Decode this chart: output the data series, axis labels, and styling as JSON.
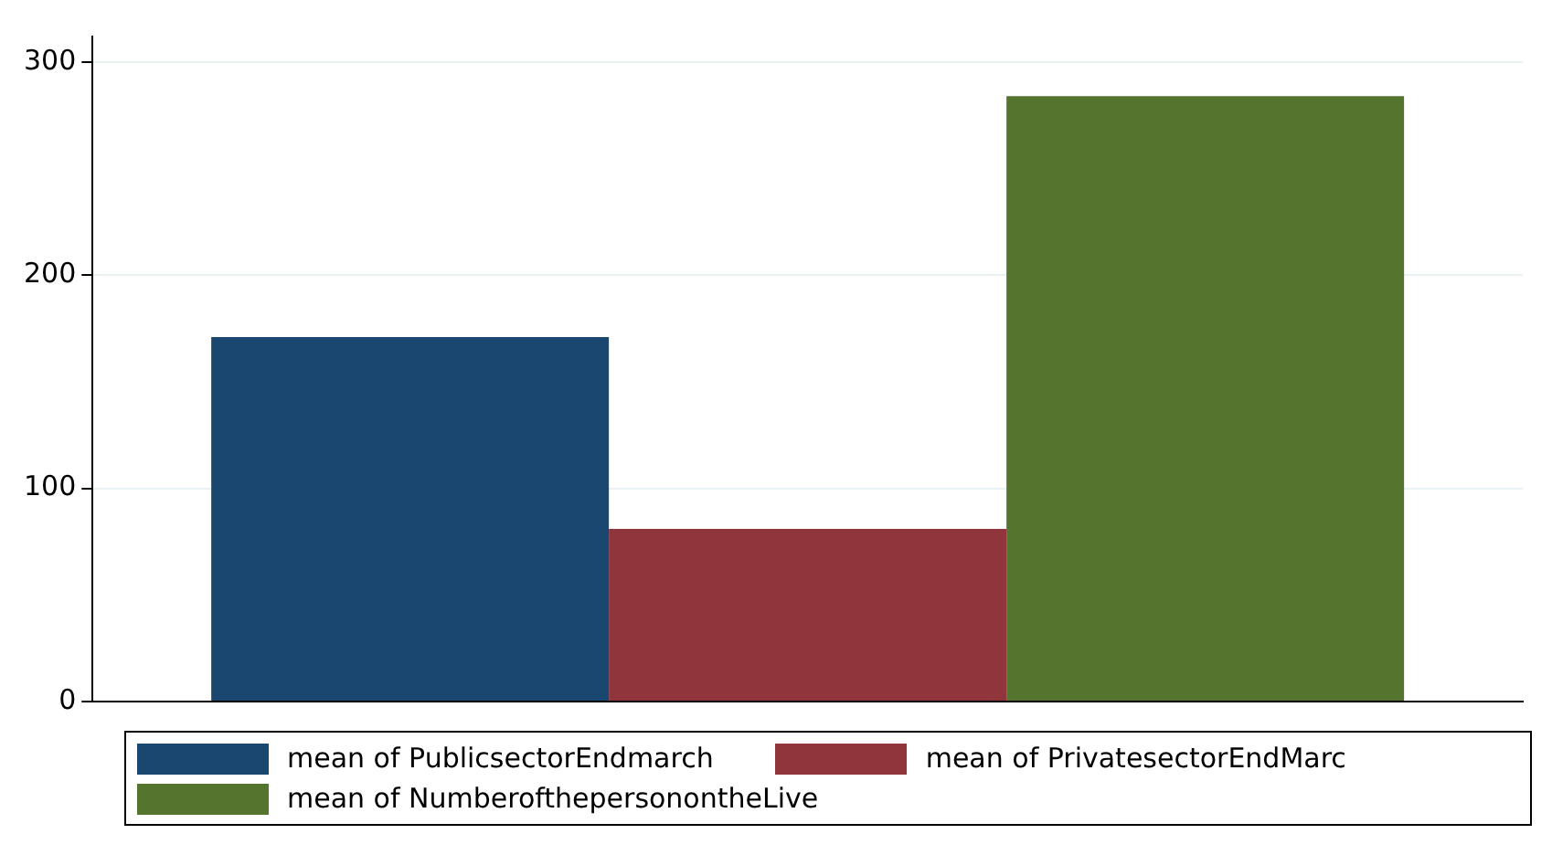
{
  "chart_data": {
    "type": "bar",
    "categories": [
      null
    ],
    "series": [
      {
        "name": "mean of PublicsectorEndmarch",
        "color": "#1a476f",
        "values": [
          171
        ]
      },
      {
        "name": "mean of PrivatesectorEndMarc",
        "color": "#90353b",
        "values": [
          81
        ]
      },
      {
        "name": "mean of NumberofthepersonontheLive",
        "color": "#55752f",
        "values": [
          284
        ]
      }
    ],
    "ylim": [
      0,
      312
    ],
    "yticks": [
      0,
      100,
      200,
      300
    ],
    "grid": "y",
    "legend": "bottom",
    "tick_labels": "y"
  }
}
